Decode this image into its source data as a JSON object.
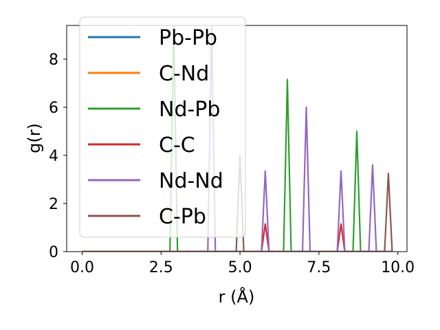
{
  "chart_data": {
    "type": "line",
    "xlabel": "r (Å)",
    "ylabel": "g(r)",
    "xlim": [
      -0.49,
      10.29
    ],
    "ylim": [
      0,
      9.4
    ],
    "x_ticks": [
      0.0,
      2.5,
      5.0,
      7.5,
      10.0
    ],
    "x_tick_labels": [
      "0.0",
      "2.5",
      "5.0",
      "7.5",
      "10.0"
    ],
    "y_ticks": [
      0,
      2,
      4,
      6,
      8
    ],
    "y_tick_labels": [
      "0",
      "2",
      "4",
      "6",
      "8"
    ],
    "grid": false,
    "legend_position": "upper-left",
    "x_range": [
      0,
      9.8
    ],
    "series": [
      {
        "name": "Pb-Pb",
        "color": "#1f77b4",
        "peaks": []
      },
      {
        "name": "C-Nd",
        "color": "#ff7f0e",
        "peaks": []
      },
      {
        "name": "Nd-Pb",
        "color": "#2ca02c",
        "peaks": [
          [
            2.9,
            9.4
          ],
          [
            6.5,
            7.15
          ],
          [
            8.7,
            5.0
          ]
        ]
      },
      {
        "name": "C-C",
        "color": "#d62728",
        "peaks": [
          [
            5.8,
            1.15
          ],
          [
            8.2,
            1.15
          ]
        ]
      },
      {
        "name": "Nd-Nd",
        "color": "#9467bd",
        "peaks": [
          [
            4.1,
            9.4
          ],
          [
            5.8,
            3.35
          ],
          [
            7.1,
            6.0
          ],
          [
            8.2,
            3.35
          ],
          [
            9.2,
            3.6
          ]
        ]
      },
      {
        "name": "C-Pb",
        "color": "#8c564b",
        "peaks": [
          [
            5.0,
            4.0
          ],
          [
            9.7,
            3.25
          ]
        ]
      }
    ]
  }
}
